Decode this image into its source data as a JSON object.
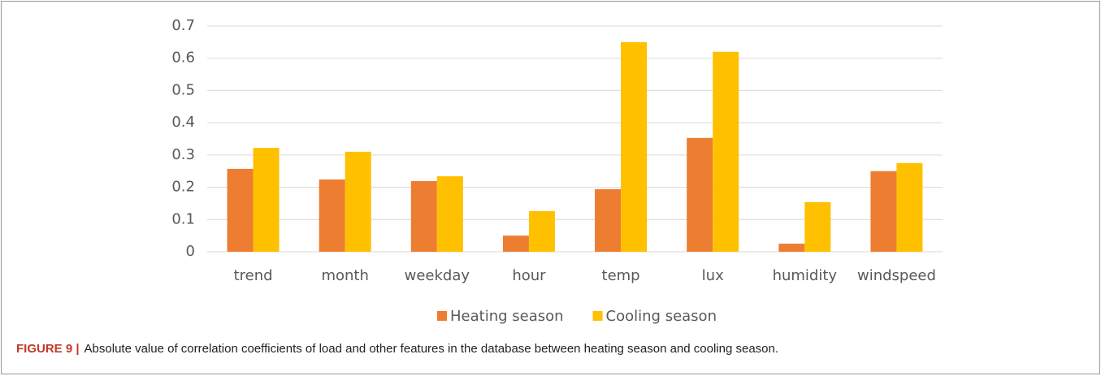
{
  "chart_data": {
    "type": "bar",
    "categories": [
      "trend",
      "month",
      "weekday",
      "hour",
      "temp",
      "lux",
      "humidity",
      "windspeed"
    ],
    "series": [
      {
        "name": "Heating season",
        "color": "#ed7d31",
        "values": [
          0.257,
          0.224,
          0.219,
          0.05,
          0.194,
          0.353,
          0.025,
          0.25
        ]
      },
      {
        "name": "Cooling season",
        "color": "#ffc000",
        "values": [
          0.322,
          0.31,
          0.234,
          0.126,
          0.65,
          0.62,
          0.154,
          0.275
        ]
      }
    ],
    "ylim": [
      0,
      0.7
    ],
    "yticks": [
      0,
      0.1,
      0.2,
      0.3,
      0.4,
      0.5,
      0.6,
      0.7
    ],
    "grid": true,
    "legend": "bottom",
    "caption_label": "FIGURE 9 |",
    "caption": "Absolute value of correlation coefficients of load and other features in the database between heating season and cooling season."
  }
}
